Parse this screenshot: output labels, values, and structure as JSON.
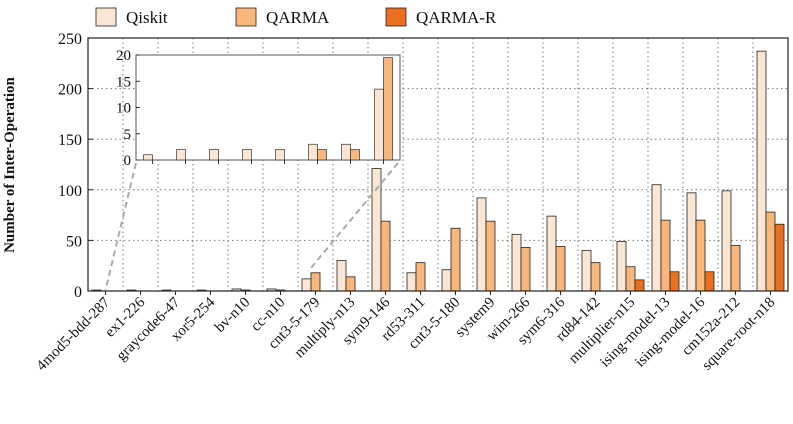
{
  "chart_data": {
    "type": "bar",
    "ylabel": "Number of Inter-Operation",
    "ylim": [
      0,
      250
    ],
    "yticks": [
      0,
      50,
      100,
      150,
      200,
      250
    ],
    "grid": "dotted",
    "legend_position": "top",
    "categories": [
      "4mod5-bdd-287",
      "ex1-226",
      "graycode6-47",
      "xor5-254",
      "bv-n10",
      "cc-n10",
      "cnt3-5-179",
      "multiply-n13",
      "sym9-146",
      "rd53-311",
      "cnt3-5-180",
      "system9",
      "wim-266",
      "sym6-316",
      "rd84-142",
      "multiplier-n15",
      "ising-model-13",
      "ising-model-16",
      "cm152a-212",
      "square-root-n18"
    ],
    "series": [
      {
        "name": "Qiskit",
        "color": "#fbe6d3",
        "values": [
          1,
          1,
          1,
          1,
          2,
          2,
          12,
          30,
          121,
          18,
          21,
          92,
          56,
          74,
          40,
          49,
          105,
          97,
          99,
          237
        ]
      },
      {
        "name": "QARMA",
        "color": "#f7b77a",
        "values": [
          0,
          0,
          0,
          0,
          1,
          1,
          18,
          14,
          69,
          28,
          62,
          69,
          43,
          44,
          28,
          24,
          70,
          70,
          45,
          78
        ]
      },
      {
        "name": "QARMA-R",
        "color": "#e9701f",
        "values": [
          0,
          0,
          0,
          0,
          0,
          0,
          0,
          0,
          0,
          0,
          0,
          0,
          0,
          0,
          0,
          11,
          19,
          19,
          0,
          66
        ]
      }
    ],
    "inset": {
      "categories": [
        "4mod5-bdd-287",
        "ex1-226",
        "graycode6-47",
        "xor5-254",
        "bv-n10",
        "cc-n10",
        "cnt3-5-179"
      ],
      "ylim": [
        0,
        20
      ],
      "yticks": [
        0,
        5,
        10,
        15,
        20
      ],
      "series": [
        {
          "name": "Qiskit",
          "values": [
            1,
            2,
            2,
            2,
            2,
            3,
            3
          ]
        },
        {
          "name": "QARMA",
          "values": [
            0,
            0,
            0,
            0,
            0,
            2,
            2
          ]
        },
        {
          "name": "QARMA-R",
          "values": [
            0,
            0,
            0,
            0,
            0,
            0,
            0
          ]
        }
      ],
      "extra_pair": {
        "Qiskit": 13.5,
        "QARMA": 19.5
      }
    }
  }
}
